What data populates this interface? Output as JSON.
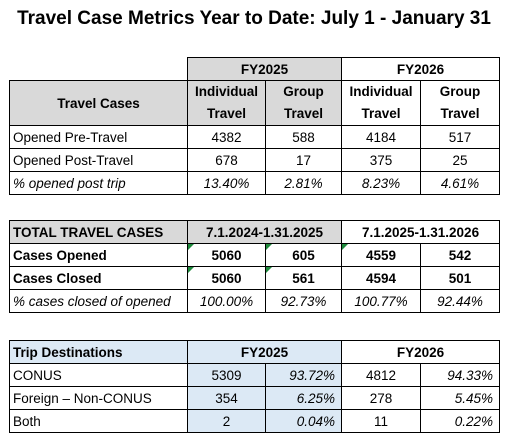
{
  "title": "Travel Case Metrics Year to Date: July 1 - January 31",
  "table1": {
    "fy2025": "FY2025",
    "fy2026": "FY2026",
    "corner": "Travel Cases",
    "sub": [
      "Individual Travel",
      "Group Travel",
      "Individual Travel",
      "Group Travel"
    ],
    "rows": [
      {
        "label": "Opened Pre-Travel",
        "v": [
          "4382",
          "588",
          "4184",
          "517"
        ]
      },
      {
        "label": "Opened Post-Travel",
        "v": [
          "678",
          "17",
          "375",
          "25"
        ]
      },
      {
        "label": "% opened post trip",
        "v": [
          "13.40%",
          "2.81%",
          "8.23%",
          "4.61%"
        ]
      }
    ]
  },
  "table2": {
    "corner": "TOTAL TRAVEL CASES",
    "range2025": "7.1.2024-1.31.2025",
    "range2026": "7.1.2025-1.31.2026",
    "rows": [
      {
        "label": "Cases Opened",
        "v": [
          "5060",
          "605",
          "4559",
          "542"
        ]
      },
      {
        "label": "Cases Closed",
        "v": [
          "5060",
          "561",
          "4594",
          "501"
        ]
      },
      {
        "label": "% cases closed of opened",
        "v": [
          "100.00%",
          "92.73%",
          "100.77%",
          "92.44%"
        ]
      }
    ]
  },
  "table3": {
    "corner": "Trip Destinations",
    "fy2025": "FY2025",
    "fy2026": "FY2026",
    "rows": [
      {
        "label": "CONUS",
        "v": [
          "5309",
          "93.72%",
          "4812",
          "94.33%"
        ]
      },
      {
        "label": "Foreign – Non-CONUS",
        "v": [
          "354",
          "6.25%",
          "278",
          "5.45%"
        ]
      },
      {
        "label": "Both",
        "v": [
          "2",
          "0.04%",
          "11",
          "0.22%"
        ]
      }
    ]
  }
}
